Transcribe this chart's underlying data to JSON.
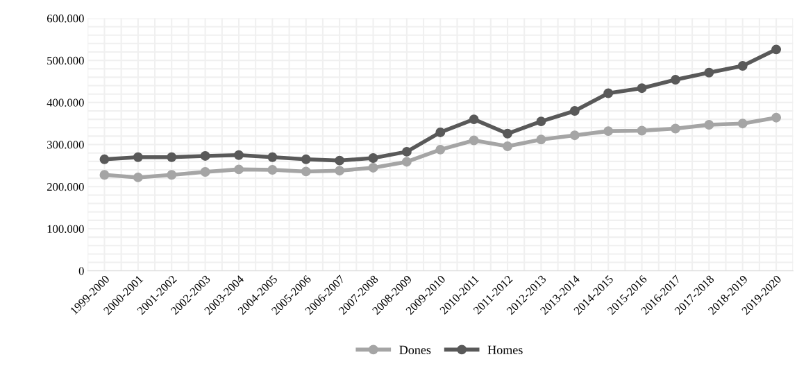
{
  "chart_data": {
    "type": "line",
    "categories": [
      "1999-2000",
      "2000-2001",
      "2001-2002",
      "2002-2003",
      "2003-2004",
      "2004-2005",
      "2005-2006",
      "2006-2007",
      "2007-2008",
      "2008-2009",
      "2009-2010",
      "2010-2011",
      "2011-2012",
      "2012-2013",
      "2013-2014",
      "2014-2015",
      "2015-2016",
      "2016-2017",
      "2017-2018",
      "2018-2019",
      "2019-2020"
    ],
    "series": [
      {
        "name": "Dones",
        "color": "#a5a5a5",
        "values": [
          228000,
          222000,
          228000,
          235000,
          241000,
          240000,
          236000,
          238000,
          245000,
          259000,
          288000,
          310000,
          296000,
          312000,
          322000,
          332000,
          333000,
          338000,
          347000,
          350000,
          364000
        ]
      },
      {
        "name": "Homes",
        "color": "#595959",
        "values": [
          265000,
          270000,
          270000,
          273000,
          275000,
          270000,
          265000,
          262000,
          268000,
          283000,
          329000,
          360000,
          326000,
          355000,
          380000,
          422000,
          434000,
          454000,
          471000,
          487000,
          526000
        ]
      }
    ],
    "ylim": [
      0,
      600000
    ],
    "yticks": [
      {
        "value": 0,
        "label": "0"
      },
      {
        "value": 100000,
        "label": "100.000"
      },
      {
        "value": 200000,
        "label": "200.000"
      },
      {
        "value": 300000,
        "label": "300.000"
      },
      {
        "value": 400000,
        "label": "400.000"
      },
      {
        "value": 500000,
        "label": "500.000"
      },
      {
        "value": 600000,
        "label": "600.000"
      }
    ],
    "grid": true,
    "legend": "bottom",
    "marker": "circle",
    "line_style": "solid"
  }
}
